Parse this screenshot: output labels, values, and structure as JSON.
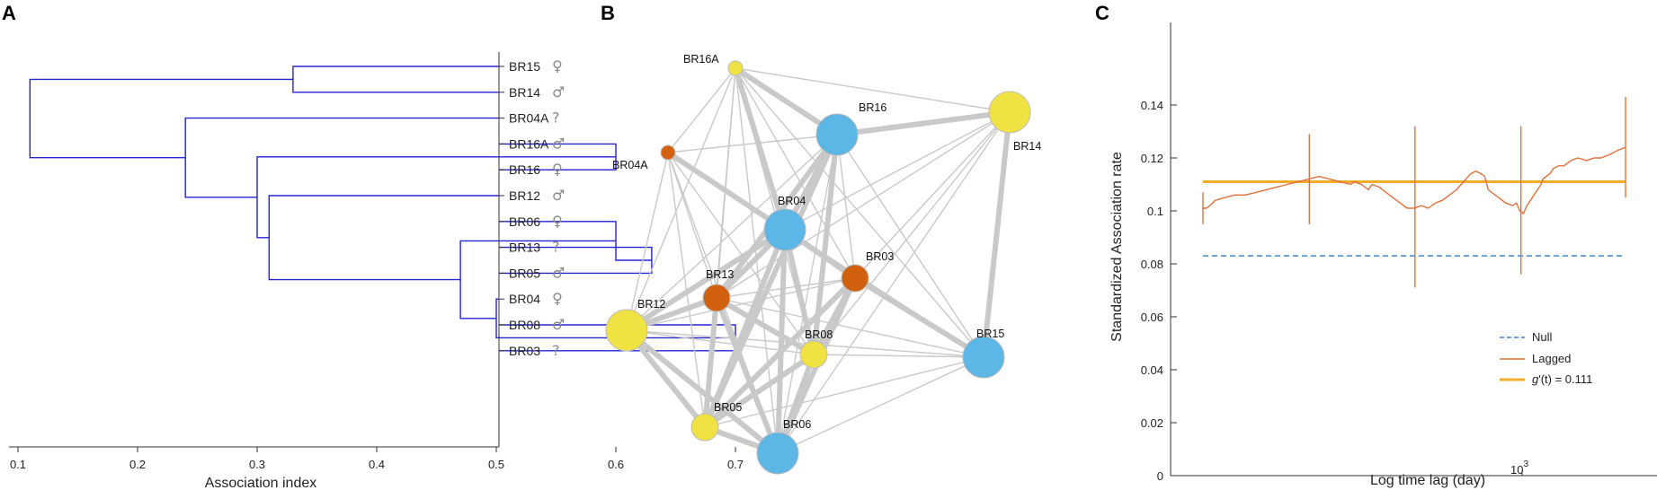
{
  "panels": {
    "a": "A",
    "b": "B",
    "c": "C"
  },
  "chart_data": [
    {
      "type": "dendrogram",
      "xlabel": "Association index",
      "xticks": [
        0.1,
        0.2,
        0.3,
        0.4,
        0.5,
        0.6,
        0.7
      ],
      "xlim": [
        0.08,
        0.78
      ],
      "leaves": [
        {
          "id": "BR15",
          "sex": "♀"
        },
        {
          "id": "BR14",
          "sex": "♂"
        },
        {
          "id": "BR04A",
          "sex": "?"
        },
        {
          "id": "BR16A",
          "sex": "♂"
        },
        {
          "id": "BR16",
          "sex": "♀"
        },
        {
          "id": "BR12",
          "sex": "♂"
        },
        {
          "id": "BR06",
          "sex": "♀"
        },
        {
          "id": "BR13",
          "sex": "?"
        },
        {
          "id": "BR05",
          "sex": "♂"
        },
        {
          "id": "BR04",
          "sex": "♀"
        },
        {
          "id": "BR08",
          "sex": "♂"
        },
        {
          "id": "BR03",
          "sex": "?"
        }
      ],
      "merges": [
        {
          "a": "BR08",
          "b": "BR03",
          "h": 0.7,
          "id": "m1"
        },
        {
          "a": "BR13",
          "b": "BR05",
          "h": 0.63,
          "id": "m2"
        },
        {
          "a": "BR16A",
          "b": "BR16",
          "h": 0.6,
          "id": "m3"
        },
        {
          "a": "BR06",
          "b": "m2",
          "h": 0.6,
          "id": "m4"
        },
        {
          "a": "BR04",
          "b": "m1",
          "h": 0.5,
          "id": "m5"
        },
        {
          "a": "m4",
          "b": "m5",
          "h": 0.47,
          "id": "m6"
        },
        {
          "a": "BR15",
          "b": "BR14",
          "h": 0.33,
          "id": "m7"
        },
        {
          "a": "BR12",
          "b": "m6",
          "h": 0.31,
          "id": "m8"
        },
        {
          "a": "m3",
          "b": "m8",
          "h": 0.3,
          "id": "m9"
        },
        {
          "a": "BR04A",
          "b": "m9",
          "h": 0.24,
          "id": "m10"
        },
        {
          "a": "m7",
          "b": "m10",
          "h": 0.11,
          "id": "m11"
        }
      ]
    },
    {
      "type": "network",
      "nodes": [
        {
          "id": "BR16A",
          "group": "yellow",
          "size": "small"
        },
        {
          "id": "BR16",
          "group": "blue",
          "size": "large"
        },
        {
          "id": "BR14",
          "group": "yellow",
          "size": "large"
        },
        {
          "id": "BR04A",
          "group": "orange",
          "size": "small"
        },
        {
          "id": "BR04",
          "group": "blue",
          "size": "large"
        },
        {
          "id": "BR03",
          "group": "orange",
          "size": "medium"
        },
        {
          "id": "BR13",
          "group": "orange",
          "size": "medium"
        },
        {
          "id": "BR12",
          "group": "yellow",
          "size": "large"
        },
        {
          "id": "BR08",
          "group": "yellow",
          "size": "medium"
        },
        {
          "id": "BR15",
          "group": "blue",
          "size": "large"
        },
        {
          "id": "BR05",
          "group": "yellow",
          "size": "medium"
        },
        {
          "id": "BR06",
          "group": "blue",
          "size": "large"
        }
      ],
      "colors": {
        "yellow": "#f1e244",
        "blue": "#5cb6e6",
        "orange": "#d2610f",
        "edge": "#c9c9c9"
      }
    },
    {
      "type": "line",
      "xlabel": "Log time lag (day)",
      "ylabel": "Standardized Association rate",
      "xscale": "log",
      "xtick_label": "10",
      "xtick_exp": "3",
      "yticks": [
        "0",
        "0.02",
        "0.04",
        "0.06",
        "0.08",
        "0.1",
        "0.12",
        "0.14"
      ],
      "ylim": [
        0,
        0.15
      ],
      "series": [
        {
          "name": "Null",
          "color": "#3f88cf",
          "style": "dashed",
          "value": 0.083
        },
        {
          "name": "Lagged",
          "color": "#e2703a",
          "style": "solid"
        },
        {
          "name_prefix": "g",
          "name_rest": "'(t) = 0.111",
          "color": "#f2ac2a",
          "style": "solid",
          "value": 0.111
        }
      ],
      "lagged_points": [
        [
          0.0,
          0.101
        ],
        [
          0.01,
          0.101
        ],
        [
          0.02,
          0.102
        ],
        [
          0.035,
          0.104
        ],
        [
          0.06,
          0.105
        ],
        [
          0.09,
          0.106
        ],
        [
          0.12,
          0.106
        ],
        [
          0.15,
          0.107
        ],
        [
          0.18,
          0.108
        ],
        [
          0.21,
          0.109
        ],
        [
          0.24,
          0.11
        ],
        [
          0.27,
          0.111
        ],
        [
          0.3,
          0.112
        ],
        [
          0.33,
          0.113
        ],
        [
          0.36,
          0.112
        ],
        [
          0.39,
          0.111
        ],
        [
          0.42,
          0.11
        ],
        [
          0.43,
          0.111
        ],
        [
          0.45,
          0.11
        ],
        [
          0.47,
          0.108
        ],
        [
          0.48,
          0.11
        ],
        [
          0.5,
          0.109
        ],
        [
          0.52,
          0.107
        ],
        [
          0.54,
          0.105
        ],
        [
          0.56,
          0.103
        ],
        [
          0.58,
          0.101
        ],
        [
          0.6,
          0.101
        ],
        [
          0.62,
          0.102
        ],
        [
          0.64,
          0.101
        ],
        [
          0.66,
          0.103
        ],
        [
          0.68,
          0.104
        ],
        [
          0.7,
          0.106
        ],
        [
          0.72,
          0.108
        ],
        [
          0.74,
          0.111
        ],
        [
          0.76,
          0.114
        ],
        [
          0.775,
          0.115
        ],
        [
          0.79,
          0.114
        ],
        [
          0.8,
          0.113
        ],
        [
          0.81,
          0.108
        ],
        [
          0.82,
          0.107
        ],
        [
          0.84,
          0.105
        ],
        [
          0.86,
          0.103
        ],
        [
          0.88,
          0.102
        ],
        [
          0.89,
          0.103
        ],
        [
          0.9,
          0.1
        ],
        [
          0.91,
          0.099
        ],
        [
          0.92,
          0.102
        ],
        [
          0.93,
          0.104
        ],
        [
          0.94,
          0.106
        ],
        [
          0.95,
          0.108
        ],
        [
          0.96,
          0.11
        ],
        [
          0.965,
          0.112
        ],
        [
          0.975,
          0.113
        ],
        [
          0.985,
          0.114
        ],
        [
          0.995,
          0.116
        ],
        [
          1.01,
          0.117
        ],
        [
          1.025,
          0.117
        ],
        [
          1.045,
          0.119
        ],
        [
          1.065,
          0.12
        ],
        [
          1.09,
          0.119
        ],
        [
          1.11,
          0.12
        ],
        [
          1.13,
          0.12
        ],
        [
          1.15,
          0.121
        ],
        [
          1.165,
          0.122
        ],
        [
          1.18,
          0.123
        ],
        [
          1.2,
          0.124
        ]
      ],
      "error_bars": [
        {
          "x": 0.0,
          "low": 0.095,
          "high": 0.107
        },
        {
          "x": 0.302,
          "low": 0.095,
          "high": 0.129
        },
        {
          "x": 0.602,
          "low": 0.071,
          "high": 0.132
        },
        {
          "x": 0.903,
          "low": 0.076,
          "high": 0.132
        },
        {
          "x": 1.2,
          "low": 0.105,
          "high": 0.143
        }
      ]
    }
  ]
}
